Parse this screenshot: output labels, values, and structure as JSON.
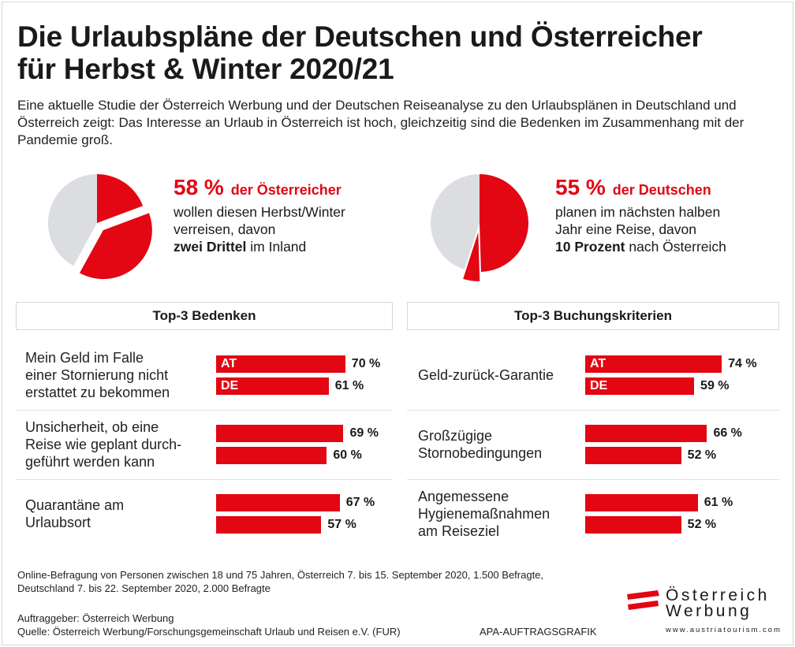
{
  "title_line1": "Die Urlaubspläne der Deutschen und Österreicher",
  "title_line2": "für Herbst & Winter 2020/21",
  "intro": "Eine aktuelle Studie der Österreich Werbung und der Deutschen Reiseanalyse zu den Urlaubsplänen in Deutschland und Österreich zeigt: Das Interesse an Urlaub in Österreich ist hoch, gleichzeitig sind die Bedenken im Zusammenhang mit der Pandemie groß.",
  "colors": {
    "accent": "#e30613",
    "pie_rest": "#dcdde1"
  },
  "chart_data": [
    {
      "type": "pie",
      "name": "Österreicher",
      "values": [
        {
          "label": "Reise Ausland",
          "value": 19.3
        },
        {
          "label": "Reise Inland",
          "value": 38.7,
          "exploded": true
        },
        {
          "label": "keine Reise",
          "value": 42
        }
      ],
      "headline_value": "58 %",
      "headline_label": "der Österreicher",
      "text1": "wollen diesen Herbst/Winter",
      "text2": "verreisen, davon",
      "bold": "zwei Drittel",
      "text3": " im Inland"
    },
    {
      "type": "pie",
      "name": "Deutsche",
      "values": [
        {
          "label": "Reise",
          "value": 49.5
        },
        {
          "label": "nach Österreich",
          "value": 5.5,
          "exploded": true
        },
        {
          "label": "keine Reise",
          "value": 45
        }
      ],
      "headline_value": "55 %",
      "headline_label": "der Deutschen",
      "text1": "planen im nächsten halben",
      "text2": "Jahr eine Reise, davon",
      "bold": "10 Prozent",
      "text3": " nach Österreich"
    },
    {
      "type": "bar",
      "title": "Top-3 Bedenken",
      "series_names": [
        "AT",
        "DE"
      ],
      "xlim": [
        0,
        100
      ],
      "categories": [
        [
          "Mein Geld im Falle",
          "einer Stornierung nicht",
          "erstattet zu bekommen"
        ],
        [
          "Unsicherheit, ob eine",
          "Reise wie geplant durch-",
          "geführt werden kann"
        ],
        [
          "Quarantäne am",
          "Urlaubsort"
        ]
      ],
      "values": [
        [
          70,
          61
        ],
        [
          69,
          60
        ],
        [
          67,
          57
        ]
      ]
    },
    {
      "type": "bar",
      "title": "Top-3 Buchungskriterien",
      "series_names": [
        "AT",
        "DE"
      ],
      "xlim": [
        0,
        100
      ],
      "categories": [
        [
          "Geld-zurück-Garantie"
        ],
        [
          "Großzügige",
          "Stornobedingungen"
        ],
        [
          "Angemessene",
          "Hygienemaßnahmen",
          "am Reiseziel"
        ]
      ],
      "values": [
        [
          74,
          59
        ],
        [
          66,
          52
        ],
        [
          61,
          52
        ]
      ]
    }
  ],
  "footnote1": "Online-Befragung von Personen zwischen 18 und 75 Jahren, Österreich 7. bis 15. September 2020, 1.500 Befragte,",
  "footnote2": "Deutschland 7. bis 22. September 2020, 2.000 Befragte",
  "client": "Auftraggeber: Österreich Werbung",
  "source": "Quelle: Österreich Werbung/Forschungsgemeinschaft Urlaub und Reisen e.V. (FUR)",
  "credit": "APA-AUFTRAGSGRAFIK",
  "logo": {
    "line1": "Österreich",
    "line2": "Werbung",
    "url": "www.austriatourism.com"
  }
}
